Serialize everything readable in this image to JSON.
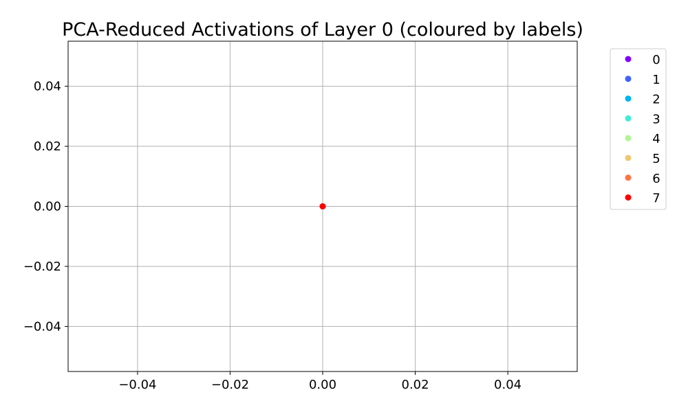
{
  "chart_data": {
    "type": "scatter",
    "title": "PCA-Reduced Activations of Layer 0 (coloured by labels)",
    "xlabel": "",
    "ylabel": "",
    "xlim": [
      -0.055,
      0.055
    ],
    "ylim": [
      -0.055,
      0.055
    ],
    "x_ticks": [
      -0.04,
      -0.02,
      0.0,
      0.02,
      0.04
    ],
    "x_tick_labels": [
      "−0.04",
      "−0.02",
      "0.00",
      "0.02",
      "0.04"
    ],
    "y_ticks": [
      0.04,
      0.02,
      0.0,
      -0.02,
      -0.04
    ],
    "y_tick_labels": [
      "0.04",
      "0.02",
      "0.00",
      "−0.02",
      "−0.04"
    ],
    "grid": true,
    "legend_position": "outside-right-top",
    "series": [
      {
        "name": "0",
        "color": "#8000ff",
        "points": [
          [
            0.0,
            0.0
          ]
        ]
      },
      {
        "name": "1",
        "color": "#4062fa",
        "points": [
          [
            0.0,
            0.0
          ]
        ]
      },
      {
        "name": "2",
        "color": "#00b5eb",
        "points": [
          [
            0.0,
            0.0
          ]
        ]
      },
      {
        "name": "3",
        "color": "#40ecd4",
        "points": [
          [
            0.0,
            0.0
          ]
        ]
      },
      {
        "name": "4",
        "color": "#b2f396",
        "points": [
          [
            0.0,
            0.0
          ]
        ]
      },
      {
        "name": "5",
        "color": "#ecc870",
        "points": [
          [
            0.0,
            0.0
          ]
        ]
      },
      {
        "name": "6",
        "color": "#ff7444",
        "points": [
          [
            0.0,
            0.0
          ]
        ]
      },
      {
        "name": "7",
        "color": "#ff0000",
        "points": [
          [
            0.0,
            0.0
          ]
        ]
      }
    ]
  }
}
